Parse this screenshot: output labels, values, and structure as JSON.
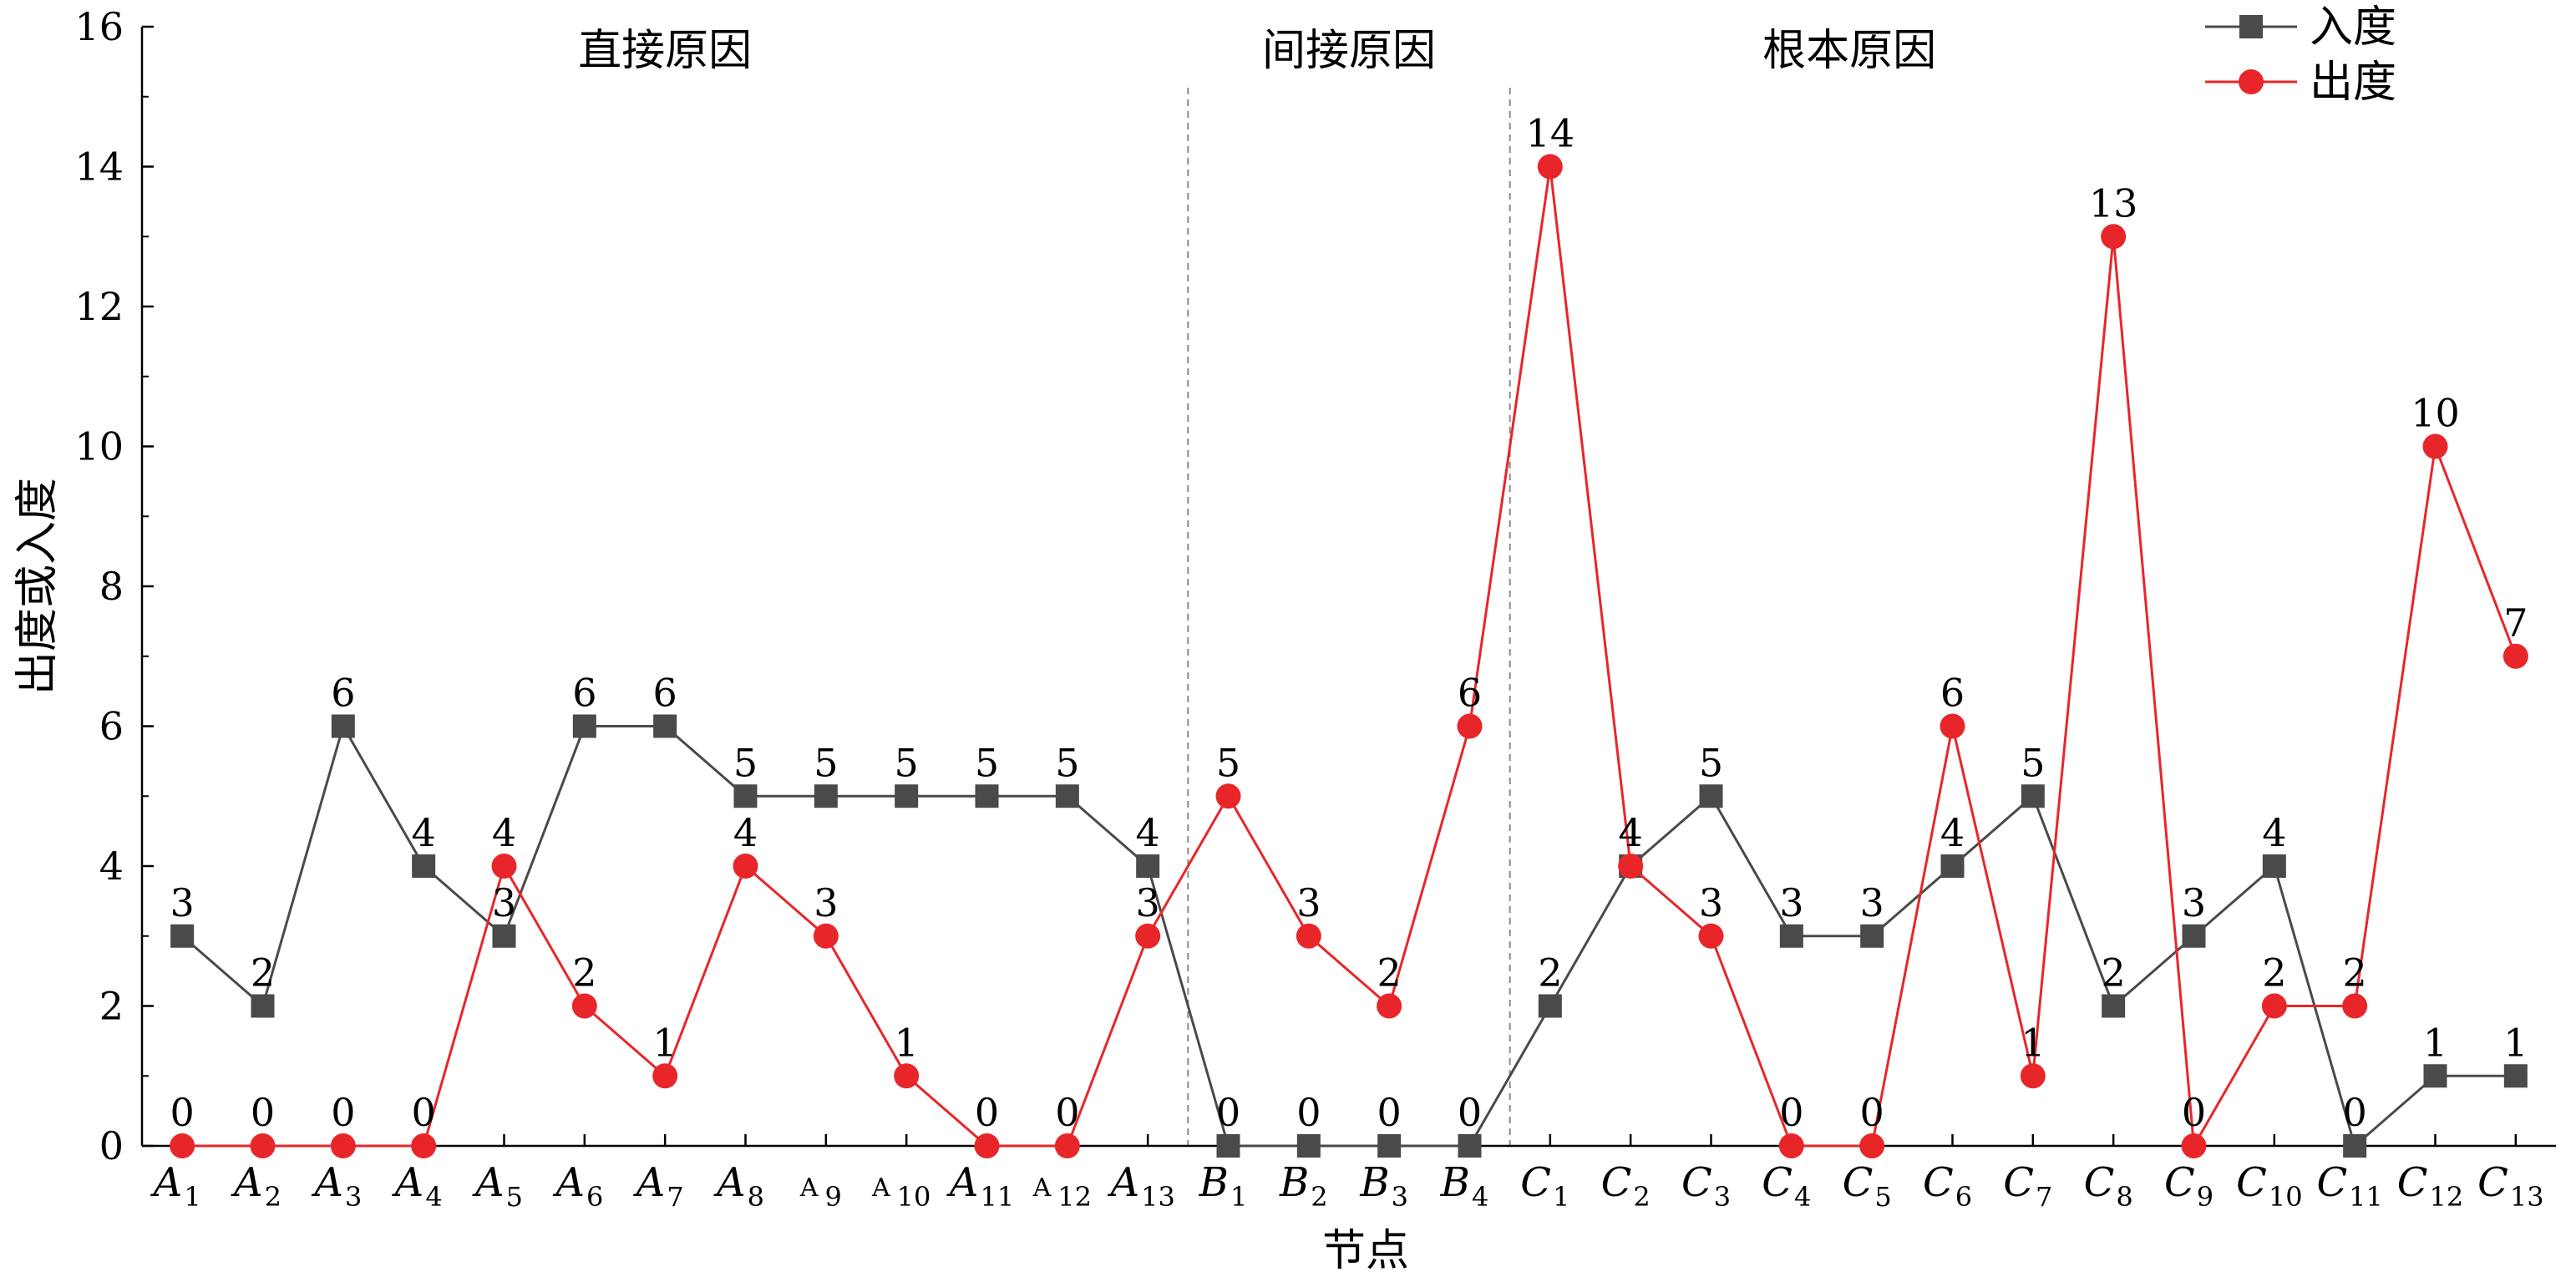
{
  "chart_data": {
    "type": "line",
    "xlabel": "节点",
    "ylabel": "出度或入度",
    "ylim": [
      0,
      16
    ],
    "yticks": [
      0,
      2,
      4,
      6,
      8,
      10,
      12,
      14,
      16
    ],
    "grid": false,
    "legend_position": "top-right",
    "categories": [
      {
        "letter": "A",
        "sub": "1",
        "italic": true
      },
      {
        "letter": "A",
        "sub": "2",
        "italic": true
      },
      {
        "letter": "A",
        "sub": "3",
        "italic": true
      },
      {
        "letter": "A",
        "sub": "4",
        "italic": true
      },
      {
        "letter": "A",
        "sub": "5",
        "italic": true
      },
      {
        "letter": "A",
        "sub": "6",
        "italic": true
      },
      {
        "letter": "A",
        "sub": "7",
        "italic": true
      },
      {
        "letter": "A",
        "sub": "8",
        "italic": true
      },
      {
        "letter": "A",
        "sub": "9",
        "italic": false
      },
      {
        "letter": "A",
        "sub": "10",
        "italic": false
      },
      {
        "letter": "A",
        "sub": "11",
        "italic": true
      },
      {
        "letter": "A",
        "sub": "12",
        "italic": false
      },
      {
        "letter": "A",
        "sub": "13",
        "italic": true
      },
      {
        "letter": "B",
        "sub": "1",
        "italic": true
      },
      {
        "letter": "B",
        "sub": "2",
        "italic": true
      },
      {
        "letter": "B",
        "sub": "3",
        "italic": true
      },
      {
        "letter": "B",
        "sub": "4",
        "italic": true
      },
      {
        "letter": "C",
        "sub": "1",
        "italic": true
      },
      {
        "letter": "C",
        "sub": "2",
        "italic": true
      },
      {
        "letter": "C",
        "sub": "3",
        "italic": true
      },
      {
        "letter": "C",
        "sub": "4",
        "italic": true
      },
      {
        "letter": "C",
        "sub": "5",
        "italic": true
      },
      {
        "letter": "C",
        "sub": "6",
        "italic": true
      },
      {
        "letter": "C",
        "sub": "7",
        "italic": true
      },
      {
        "letter": "C",
        "sub": "8",
        "italic": true
      },
      {
        "letter": "C",
        "sub": "9",
        "italic": true
      },
      {
        "letter": "C",
        "sub": "10",
        "italic": true
      },
      {
        "letter": "C",
        "sub": "11",
        "italic": true
      },
      {
        "letter": "C",
        "sub": "12",
        "italic": true
      },
      {
        "letter": "C",
        "sub": "13",
        "italic": true
      }
    ],
    "series": [
      {
        "name": "入度",
        "color": "#4a4a4a",
        "marker": "square",
        "values": [
          3,
          2,
          6,
          4,
          3,
          6,
          6,
          5,
          5,
          5,
          5,
          5,
          4,
          0,
          0,
          0,
          0,
          2,
          4,
          5,
          3,
          3,
          4,
          5,
          2,
          3,
          4,
          0,
          1,
          1
        ]
      },
      {
        "name": "出度",
        "color": "#e8262a",
        "marker": "circle",
        "values": [
          0,
          0,
          0,
          0,
          4,
          2,
          1,
          4,
          3,
          1,
          0,
          0,
          3,
          5,
          3,
          2,
          6,
          14,
          4,
          3,
          0,
          0,
          6,
          1,
          13,
          0,
          2,
          2,
          10,
          7
        ]
      }
    ],
    "groups": [
      {
        "label": "直接原因",
        "start": 0,
        "end": 12
      },
      {
        "label": "间接原因",
        "start": 13,
        "end": 16
      },
      {
        "label": "根本原因",
        "start": 17,
        "end": 29
      }
    ],
    "group_dividers_after": [
      12,
      16
    ]
  }
}
